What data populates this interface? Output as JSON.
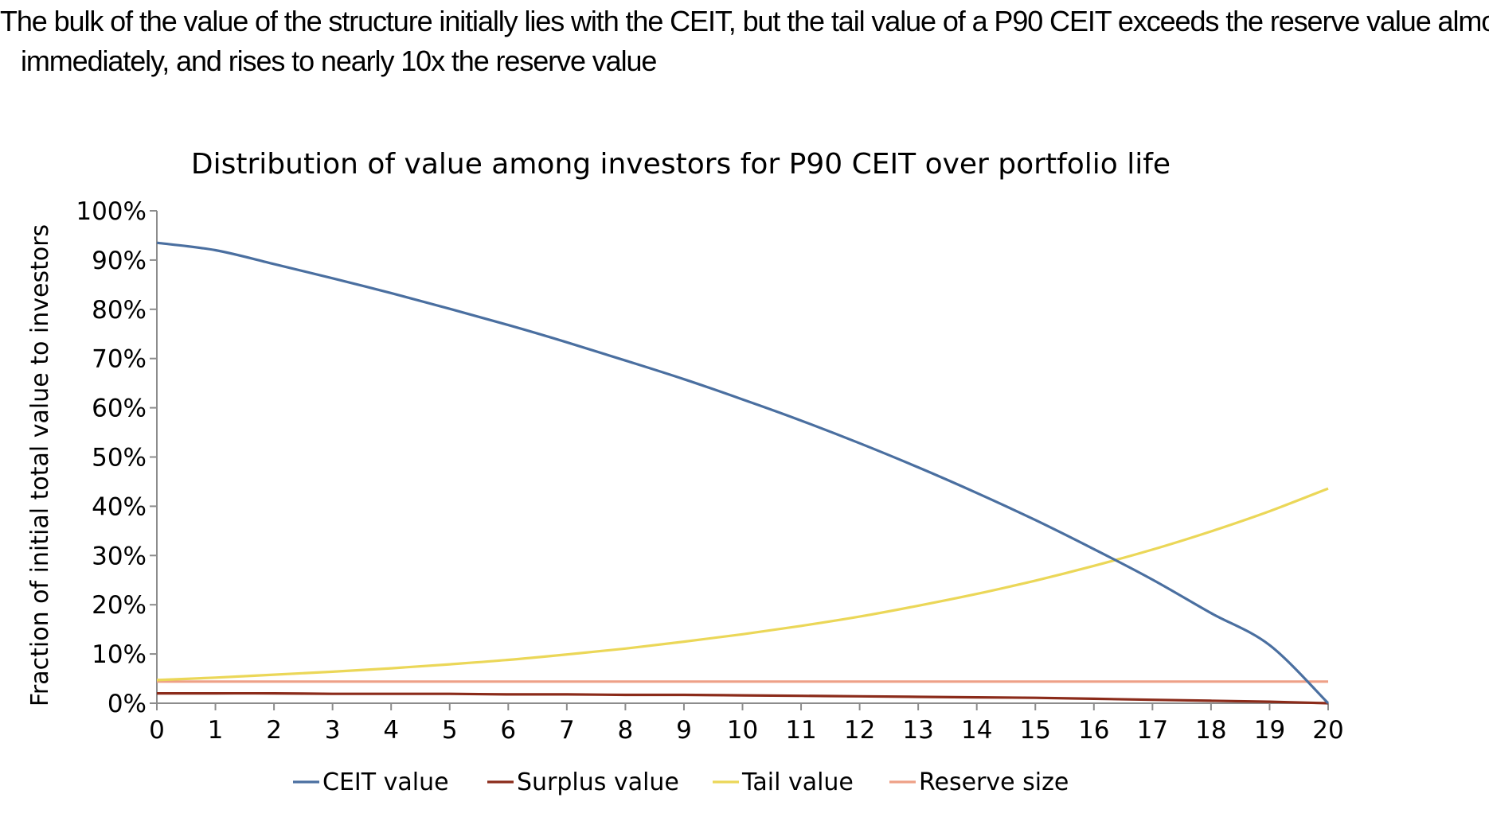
{
  "caption": {
    "line1": "The bulk of the value of the structure initially lies with the CEIT, but the tail value of a P90 CEIT exceeds the reserve value almost",
    "line2": "immediately, and rises to nearly 10x the reserve value"
  },
  "chart_data": {
    "type": "line",
    "title": "Distribution of value among investors for P90 CEIT over portfolio life",
    "xlabel": "",
    "ylabel": "Fraction of initial total value to investors",
    "x": [
      0,
      1,
      2,
      3,
      4,
      5,
      6,
      7,
      8,
      9,
      10,
      11,
      12,
      13,
      14,
      15,
      16,
      17,
      18,
      19,
      20
    ],
    "xlim": [
      0,
      20
    ],
    "ylim": [
      0,
      100
    ],
    "y_tick_labels": [
      "0%",
      "10%",
      "20%",
      "30%",
      "40%",
      "50%",
      "60%",
      "70%",
      "80%",
      "90%",
      "100%"
    ],
    "x_tick_labels": [
      "0",
      "1",
      "2",
      "3",
      "4",
      "5",
      "6",
      "7",
      "8",
      "9",
      "10",
      "11",
      "12",
      "13",
      "14",
      "15",
      "16",
      "17",
      "18",
      "19",
      "20"
    ],
    "grid": false,
    "legend_position": "bottom",
    "series": [
      {
        "name": "CEIT value",
        "color": "#4a6fa0",
        "values": [
          93.5,
          92,
          89.2,
          86.3,
          83.3,
          80.1,
          76.8,
          73.3,
          69.6,
          65.8,
          61.7,
          57.4,
          52.8,
          47.9,
          42.7,
          37.2,
          31.3,
          25.1,
          18.3,
          11.8,
          0
        ]
      },
      {
        "name": "Surplus value",
        "color": "#8b2b1a",
        "values": [
          2.0,
          2.0,
          2.0,
          1.9,
          1.9,
          1.9,
          1.8,
          1.8,
          1.7,
          1.7,
          1.6,
          1.5,
          1.4,
          1.3,
          1.2,
          1.1,
          0.9,
          0.7,
          0.5,
          0.3,
          0
        ]
      },
      {
        "name": "Tail value",
        "color": "#ebd758",
        "values": [
          4.7,
          5.2,
          5.8,
          6.4,
          7.1,
          7.9,
          8.8,
          9.9,
          11.1,
          12.5,
          14.0,
          15.7,
          17.6,
          19.8,
          22.2,
          24.9,
          27.9,
          31.2,
          34.9,
          39.0,
          43.6
        ]
      },
      {
        "name": "Reserve size",
        "color": "#eea087",
        "values": [
          4.4,
          4.4,
          4.4,
          4.4,
          4.4,
          4.4,
          4.4,
          4.4,
          4.4,
          4.4,
          4.4,
          4.4,
          4.4,
          4.4,
          4.4,
          4.4,
          4.4,
          4.4,
          4.4,
          4.4,
          4.4
        ]
      }
    ]
  }
}
